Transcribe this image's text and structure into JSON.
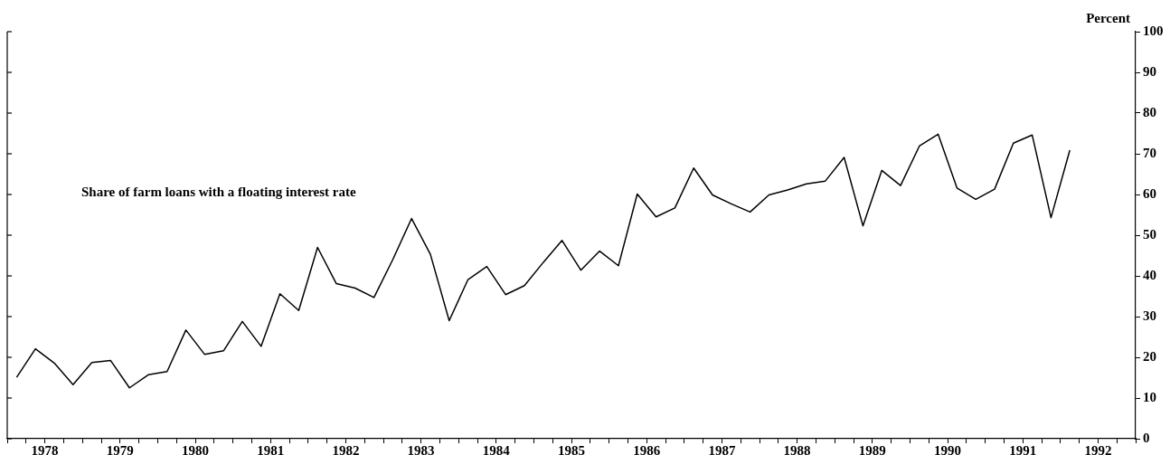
{
  "chart_data": {
    "type": "line",
    "ylabel": "Percent",
    "annotations": [
      "Share of farm loans with a floating interest rate"
    ],
    "x": [
      1978.125,
      1978.375,
      1978.625,
      1978.875,
      1979.125,
      1979.375,
      1979.625,
      1979.875,
      1980.125,
      1980.375,
      1980.625,
      1980.875,
      1981.125,
      1981.375,
      1981.625,
      1981.875,
      1982.125,
      1982.375,
      1982.625,
      1982.875,
      1983.125,
      1983.375,
      1983.625,
      1983.875,
      1984.125,
      1984.375,
      1984.625,
      1984.875,
      1985.125,
      1985.375,
      1985.625,
      1985.875,
      1986.125,
      1986.375,
      1986.625,
      1986.875,
      1987.125,
      1987.375,
      1987.625,
      1987.875,
      1988.125,
      1988.375,
      1988.625,
      1988.875,
      1989.125,
      1989.375,
      1989.625,
      1989.875,
      1990.125,
      1990.375,
      1990.625,
      1990.875,
      1991.125,
      1991.375,
      1991.625,
      1991.875,
      1992.125
    ],
    "series": [
      {
        "color": "#000000",
        "values": [
          15.1,
          22.1,
          18.6,
          13.3,
          18.7,
          19.2,
          12.5,
          15.7,
          16.5,
          26.7,
          20.7,
          21.6,
          28.8,
          22.7,
          35.6,
          31.5,
          47.0,
          38.1,
          37.0,
          34.7,
          44.0,
          54.1,
          45.3,
          29.0,
          39.1,
          42.3,
          35.4,
          37.6,
          43.3,
          48.7,
          41.4,
          46.1,
          42.5,
          60.1,
          54.5,
          56.7,
          66.5,
          59.9,
          57.7,
          55.7,
          59.9,
          61.1,
          62.6,
          63.3,
          69.1,
          52.3,
          65.9,
          62.2,
          71.9,
          74.8,
          61.6,
          58.8,
          61.3,
          72.6,
          74.6,
          54.3,
          70.9
        ]
      }
    ],
    "xlim": [
      1978,
      1993
    ],
    "xticks": [
      {
        "value": 1978,
        "label": null
      },
      {
        "value": 1978.25,
        "label": null
      },
      {
        "value": 1978.5,
        "label": "1978"
      },
      {
        "value": 1978.75,
        "label": null
      },
      {
        "value": 1979,
        "label": null
      },
      {
        "value": 1979.25,
        "label": null
      },
      {
        "value": 1979.5,
        "label": "1979"
      },
      {
        "value": 1979.75,
        "label": null
      },
      {
        "value": 1980,
        "label": null
      },
      {
        "value": 1980.25,
        "label": null
      },
      {
        "value": 1980.5,
        "label": "1980"
      },
      {
        "value": 1980.75,
        "label": null
      },
      {
        "value": 1981,
        "label": null
      },
      {
        "value": 1981.25,
        "label": null
      },
      {
        "value": 1981.5,
        "label": "1981"
      },
      {
        "value": 1981.75,
        "label": null
      },
      {
        "value": 1982,
        "label": null
      },
      {
        "value": 1982.25,
        "label": null
      },
      {
        "value": 1982.5,
        "label": "1982"
      },
      {
        "value": 1982.75,
        "label": null
      },
      {
        "value": 1983,
        "label": null
      },
      {
        "value": 1983.25,
        "label": null
      },
      {
        "value": 1983.5,
        "label": "1983"
      },
      {
        "value": 1983.75,
        "label": null
      },
      {
        "value": 1984,
        "label": null
      },
      {
        "value": 1984.25,
        "label": null
      },
      {
        "value": 1984.5,
        "label": "1984"
      },
      {
        "value": 1984.75,
        "label": null
      },
      {
        "value": 1985,
        "label": null
      },
      {
        "value": 1985.25,
        "label": null
      },
      {
        "value": 1985.5,
        "label": "1985"
      },
      {
        "value": 1985.75,
        "label": null
      },
      {
        "value": 1986,
        "label": null
      },
      {
        "value": 1986.25,
        "label": null
      },
      {
        "value": 1986.5,
        "label": "1986"
      },
      {
        "value": 1986.75,
        "label": null
      },
      {
        "value": 1987,
        "label": null
      },
      {
        "value": 1987.25,
        "label": null
      },
      {
        "value": 1987.5,
        "label": "1987"
      },
      {
        "value": 1987.75,
        "label": null
      },
      {
        "value": 1988,
        "label": null
      },
      {
        "value": 1988.25,
        "label": null
      },
      {
        "value": 1988.5,
        "label": "1988"
      },
      {
        "value": 1988.75,
        "label": null
      },
      {
        "value": 1989,
        "label": null
      },
      {
        "value": 1989.25,
        "label": null
      },
      {
        "value": 1989.5,
        "label": "1989"
      },
      {
        "value": 1989.75,
        "label": null
      },
      {
        "value": 1990,
        "label": null
      },
      {
        "value": 1990.25,
        "label": null
      },
      {
        "value": 1990.5,
        "label": "1990"
      },
      {
        "value": 1990.75,
        "label": null
      },
      {
        "value": 1991,
        "label": null
      },
      {
        "value": 1991.25,
        "label": null
      },
      {
        "value": 1991.5,
        "label": "1991"
      },
      {
        "value": 1991.75,
        "label": null
      },
      {
        "value": 1992,
        "label": null
      },
      {
        "value": 1992.25,
        "label": null
      },
      {
        "value": 1992.5,
        "label": "1992"
      },
      {
        "value": 1992.75,
        "label": null
      },
      {
        "value": 1993,
        "label": null
      }
    ],
    "ylim": [
      0,
      100
    ],
    "yticks": [
      0,
      10,
      20,
      30,
      40,
      50,
      60,
      70,
      80,
      90,
      100
    ],
    "grid": false,
    "legend": false,
    "marker": "none",
    "line_style": "solid"
  }
}
